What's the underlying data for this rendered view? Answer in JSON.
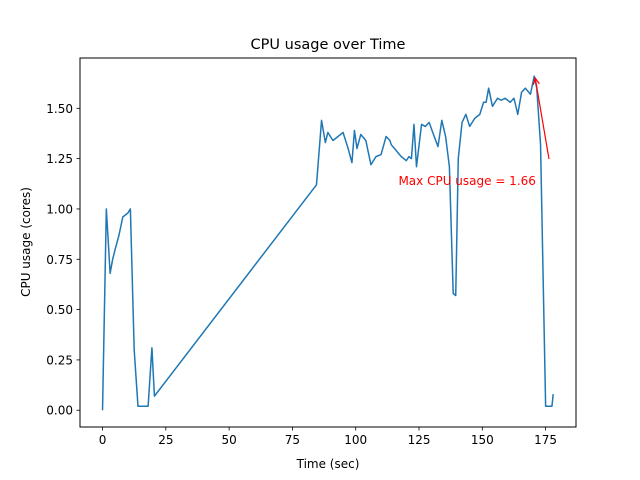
{
  "chart_data": {
    "type": "line",
    "title": "CPU usage over Time",
    "xlabel": "Time (sec)",
    "ylabel": "CPU usage (cores)",
    "xlim": [
      -8.9,
      187
    ],
    "ylim": [
      -0.0833,
      1.75
    ],
    "xticks": [
      0,
      25,
      50,
      75,
      100,
      125,
      150,
      175
    ],
    "yticks": [
      0.0,
      0.25,
      0.5,
      0.75,
      1.0,
      1.25,
      1.5
    ],
    "ytick_labels": [
      "0.00",
      "0.25",
      "0.50",
      "0.75",
      "1.00",
      "1.25",
      "1.50"
    ],
    "grid": false,
    "line_color": "#1f77b4",
    "series": [
      {
        "name": "CPU usage",
        "x": [
          0,
          1.5,
          3,
          4,
          5,
          6.5,
          8,
          10,
          11,
          12.5,
          14,
          15,
          16,
          18,
          19.5,
          20.5,
          84.5,
          86.5,
          88,
          89,
          90,
          91,
          93,
          95,
          97,
          98.5,
          99.5,
          100.5,
          102,
          104,
          105,
          106,
          108,
          110,
          112,
          113.5,
          114,
          116,
          118,
          120,
          121,
          122,
          123,
          124,
          126,
          127.5,
          129,
          131,
          132.5,
          134,
          135.5,
          137,
          138.5,
          139.5,
          140.5,
          142,
          143.5,
          145,
          147,
          149,
          150.5,
          151.5,
          152.5,
          154,
          156,
          157.5,
          159,
          161,
          162.5,
          164,
          165.5,
          167,
          169,
          170.5,
          171.5,
          173,
          175,
          176.5,
          177.5,
          178
        ],
        "y": [
          0.0,
          1.0,
          0.68,
          0.75,
          0.8,
          0.87,
          0.96,
          0.98,
          1.0,
          0.3,
          0.02,
          0.02,
          0.02,
          0.02,
          0.31,
          0.07,
          1.12,
          1.44,
          1.33,
          1.38,
          1.36,
          1.34,
          1.36,
          1.38,
          1.3,
          1.23,
          1.39,
          1.3,
          1.37,
          1.34,
          1.28,
          1.22,
          1.26,
          1.27,
          1.36,
          1.34,
          1.32,
          1.29,
          1.26,
          1.24,
          1.26,
          1.25,
          1.42,
          1.21,
          1.42,
          1.41,
          1.43,
          1.36,
          1.31,
          1.44,
          1.36,
          1.21,
          0.58,
          0.57,
          1.25,
          1.43,
          1.47,
          1.41,
          1.45,
          1.47,
          1.53,
          1.53,
          1.6,
          1.51,
          1.55,
          1.54,
          1.55,
          1.53,
          1.55,
          1.47,
          1.58,
          1.6,
          1.57,
          1.66,
          1.6,
          1.32,
          0.02,
          0.02,
          0.02,
          0.08
        ]
      }
    ],
    "annotation": {
      "text": "Max CPU usage = 1.66",
      "color": "#ff0000",
      "point": [
        170.5,
        1.66
      ],
      "text_anchor_point": [
        146.5,
        1.15
      ]
    }
  }
}
